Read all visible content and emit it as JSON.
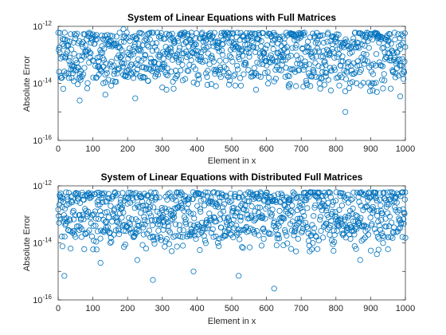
{
  "chart_data": [
    {
      "type": "scatter",
      "title": "System of Linear Equations with Full Matrices",
      "xlabel": "Element in x",
      "ylabel": "Absolute Error",
      "xlim": [
        0,
        1000
      ],
      "ylim": [
        1e-16,
        1e-12
      ],
      "yscale": "log",
      "xticks": [
        "0",
        "100",
        "200",
        "300",
        "400",
        "500",
        "600",
        "700",
        "800",
        "900",
        "1000"
      ],
      "yticks": [
        {
          "base": "10",
          "exp": "-12"
        },
        {
          "base": "10",
          "exp": "-14"
        },
        {
          "base": "10",
          "exp": "-16"
        }
      ],
      "marker": "open-circle",
      "marker_color": "#0072BD",
      "n_points": 1000,
      "typical_range": [
        1e-14,
        6e-13
      ],
      "series": [
        {
          "values": [
            {
              "x": 20,
              "y": 8e-14
            },
            {
              "x": 45,
              "y": 1.2e-14
            },
            {
              "x": 62,
              "y": 2.5e-15
            },
            {
              "x": 130,
              "y": 1e-14
            },
            {
              "x": 136,
              "y": 4e-15
            },
            {
              "x": 157,
              "y": 1.2e-14
            },
            {
              "x": 188,
              "y": 8e-13
            },
            {
              "x": 222,
              "y": 3e-15
            },
            {
              "x": 312,
              "y": 6e-15
            },
            {
              "x": 492,
              "y": 9e-15
            },
            {
              "x": 570,
              "y": 6e-15
            },
            {
              "x": 685,
              "y": 8e-15
            },
            {
              "x": 827,
              "y": 1e-15
            },
            {
              "x": 918,
              "y": 5e-15
            },
            {
              "x": 985,
              "y": 3.5e-15
            }
          ]
        }
      ]
    },
    {
      "type": "scatter",
      "title": "System of Linear Equations with Distributed Full Matrices",
      "xlabel": "Element in x",
      "ylabel": "Absolute Error",
      "xlim": [
        0,
        1000
      ],
      "ylim": [
        1e-16,
        1e-12
      ],
      "yscale": "log",
      "xticks": [
        "0",
        "100",
        "200",
        "300",
        "400",
        "500",
        "600",
        "700",
        "800",
        "900",
        "1000"
      ],
      "yticks": [
        {
          "base": "10",
          "exp": "-12"
        },
        {
          "base": "10",
          "exp": "-14"
        },
        {
          "base": "10",
          "exp": "-16"
        }
      ],
      "marker": "open-circle",
      "marker_color": "#0072BD",
      "n_points": 1000,
      "typical_range": [
        1e-14,
        6e-13
      ],
      "series": [
        {
          "values": [
            {
              "x": 18,
              "y": 7e-16
            },
            {
              "x": 122,
              "y": 2e-15
            },
            {
              "x": 228,
              "y": 2.5e-15
            },
            {
              "x": 273,
              "y": 5e-16
            },
            {
              "x": 390,
              "y": 1e-15
            },
            {
              "x": 520,
              "y": 7e-16
            },
            {
              "x": 622,
              "y": 2.5e-16
            },
            {
              "x": 801,
              "y": 6e-13
            },
            {
              "x": 870,
              "y": 2.5e-15
            },
            {
              "x": 918,
              "y": 4e-15
            },
            {
              "x": 1000,
              "y": 1.5e-14
            }
          ]
        }
      ]
    }
  ]
}
